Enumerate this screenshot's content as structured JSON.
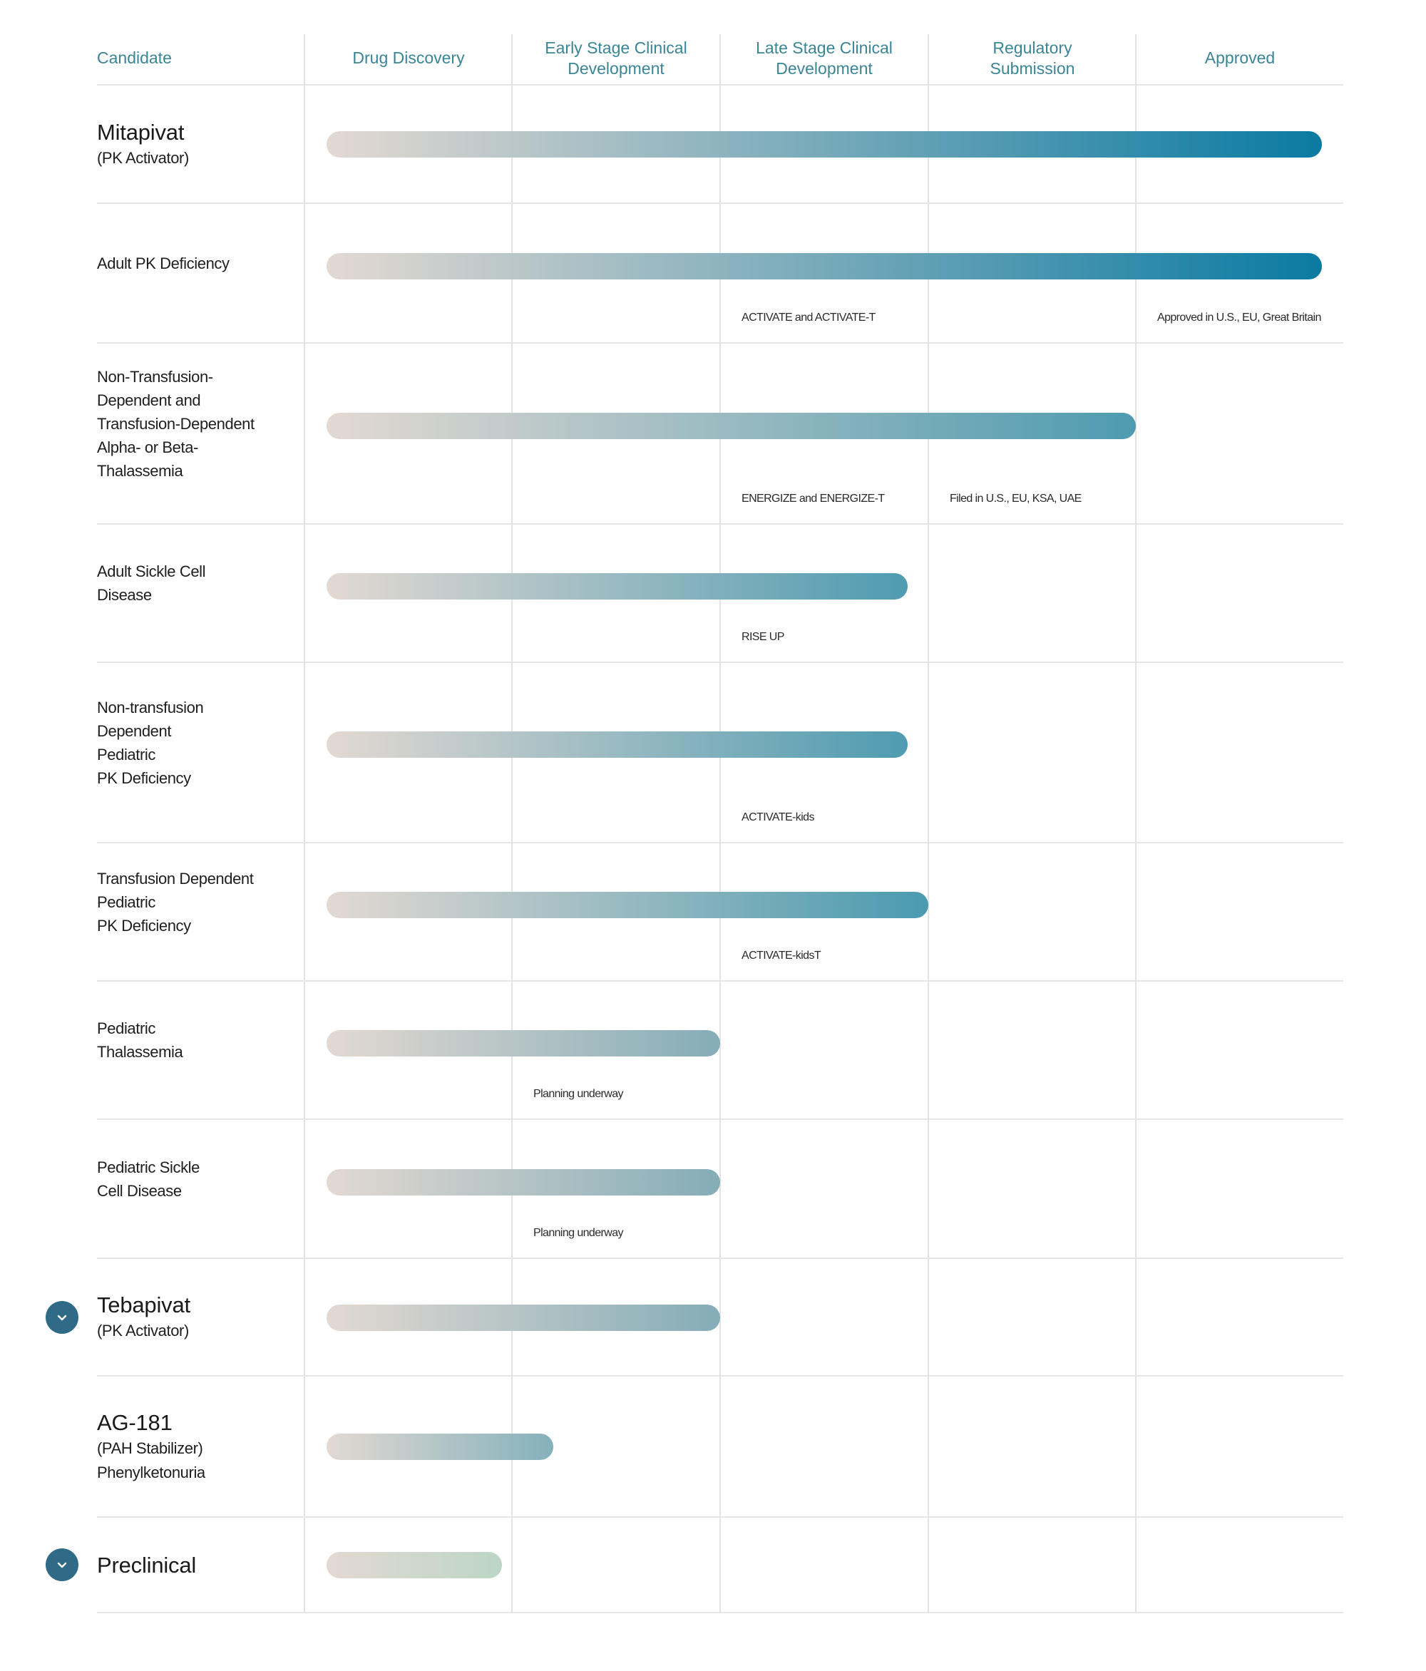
{
  "chart_data": {
    "type": "bar",
    "title": "",
    "columns": [
      "Candidate",
      "Drug Discovery",
      "Early Stage Clinical Development",
      "Late Stage Clinical Development",
      "Regulatory Submission",
      "Approved"
    ],
    "stage_scale": [
      0,
      5
    ],
    "rows": [
      {
        "label": "Mitapivat",
        "sub": "(PK Activator)",
        "style": "title",
        "progress": 4.9,
        "color": "#0a7aa2",
        "notes": []
      },
      {
        "label": "Adult PK Deficiency",
        "style": "plain",
        "progress": 4.9,
        "color": "#0a7aa2",
        "notes": [
          {
            "stage": 2,
            "text": "ACTIVATE and ACTIVATE-T"
          },
          {
            "stage": 4,
            "text": "Approved in U.S., EU, Great Britain"
          }
        ]
      },
      {
        "label": "Non-Transfusion-Dependent and Transfusion-Dependent Alpha- or Beta-Thalassemia",
        "lines": [
          "Non-Transfusion-",
          "Dependent and",
          "Transfusion-Dependent",
          "Alpha- or Beta-",
          "Thalassemia"
        ],
        "style": "plain",
        "progress": 4.0,
        "color": "#4e9bb0",
        "notes": [
          {
            "stage": 2,
            "text": "ENERGIZE and ENERGIZE-T"
          },
          {
            "stage": 3,
            "text": "Filed in U.S., EU, KSA, UAE"
          }
        ]
      },
      {
        "label": "Adult Sickle Cell Disease",
        "lines": [
          "Adult Sickle Cell",
          "Disease"
        ],
        "style": "plain",
        "progress": 2.9,
        "color": "#4f9bb1",
        "notes": [
          {
            "stage": 2,
            "text": "RISE UP"
          }
        ]
      },
      {
        "label": "Non-transfusion Dependent Pediatric PK Deficiency",
        "lines": [
          "Non-transfusion",
          "Dependent",
          "Pediatric",
          "PK Deficiency"
        ],
        "style": "plain",
        "progress": 2.9,
        "color": "#4f9bb1",
        "notes": [
          {
            "stage": 2,
            "text": "ACTIVATE-kids"
          }
        ]
      },
      {
        "label": "Transfusion Dependent Pediatric PK Deficiency",
        "lines": [
          "Transfusion Dependent",
          "Pediatric",
          "PK Deficiency"
        ],
        "style": "plain",
        "progress": 3.0,
        "color": "#4a9ab0",
        "notes": [
          {
            "stage": 2,
            "text": "ACTIVATE-kidsT"
          }
        ]
      },
      {
        "label": "Pediatric Thalassemia",
        "lines": [
          "Pediatric",
          "Thalassemia"
        ],
        "style": "plain",
        "progress": 2.0,
        "color": "#84adb8",
        "notes": [
          {
            "stage": 1,
            "text": "Planning underway"
          }
        ]
      },
      {
        "label": "Pediatric Sickle Cell Disease",
        "lines": [
          "Pediatric Sickle",
          "Cell Disease"
        ],
        "style": "plain",
        "progress": 2.0,
        "color": "#84adb8",
        "notes": [
          {
            "stage": 1,
            "text": "Planning underway"
          }
        ]
      },
      {
        "label": "Tebapivat",
        "sub": "(PK Activator)",
        "style": "title",
        "expand": true,
        "progress": 2.0,
        "color": "#84adb8",
        "notes": []
      },
      {
        "label": "AG-181",
        "sub": "(PAH Stabilizer)",
        "sub2": "Phenylketonuria",
        "style": "title",
        "progress": 1.2,
        "color": "#84b1bc",
        "notes": []
      },
      {
        "label": "Preclinical",
        "style": "title",
        "expand": true,
        "progress": 0.95,
        "color": "#bcd6c6",
        "notes": []
      }
    ]
  },
  "colors": {
    "bar_start": "#e3d9d2",
    "header_text": "#3a8596",
    "grid": "#e2e2e2",
    "toggle": "#2f6b86"
  },
  "icons": {
    "expand": "chevron-down-icon"
  }
}
